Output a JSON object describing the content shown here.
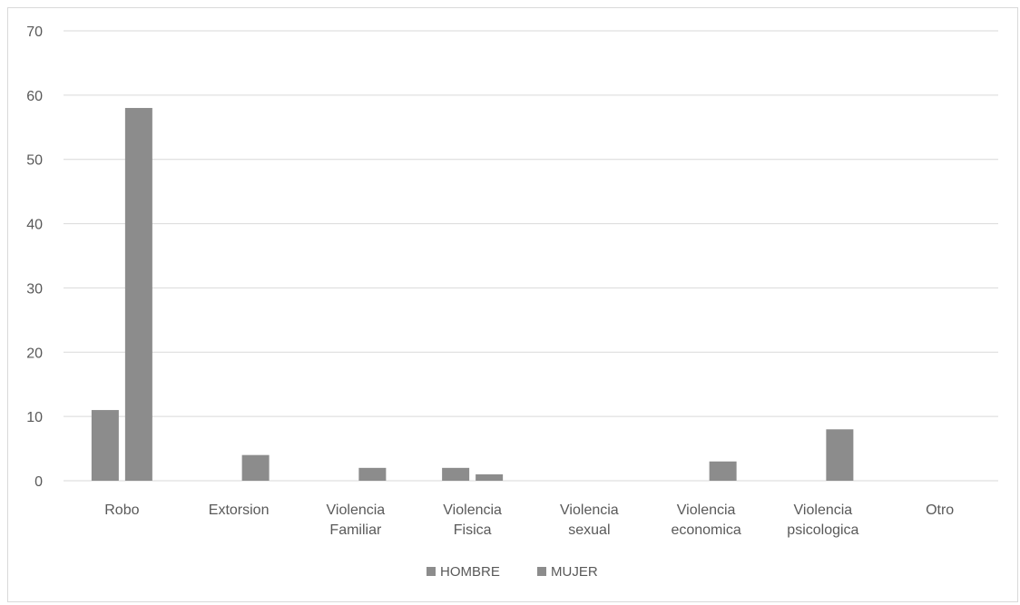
{
  "chart_data": {
    "type": "bar",
    "categories": [
      [
        "Robo"
      ],
      [
        "Extorsion"
      ],
      [
        "Violencia",
        "Familiar"
      ],
      [
        "Violencia",
        "Fisica"
      ],
      [
        "Violencia",
        "sexual"
      ],
      [
        "Violencia",
        "economica"
      ],
      [
        "Violencia",
        "psicologica"
      ],
      [
        "Otro"
      ]
    ],
    "series": [
      {
        "name": "HOMBRE",
        "values": [
          11,
          0,
          0,
          2,
          0,
          0,
          0,
          0
        ],
        "color": "#8c8c8c"
      },
      {
        "name": "MUJER",
        "values": [
          58,
          4,
          2,
          1,
          0,
          3,
          8,
          0
        ],
        "color": "#8c8c8c"
      }
    ],
    "ylim": [
      0,
      70
    ],
    "yticks": [
      0,
      10,
      20,
      30,
      40,
      50,
      60,
      70
    ],
    "grid": true,
    "legend": "bottom-center",
    "gridColor": "#d9d9d9"
  }
}
